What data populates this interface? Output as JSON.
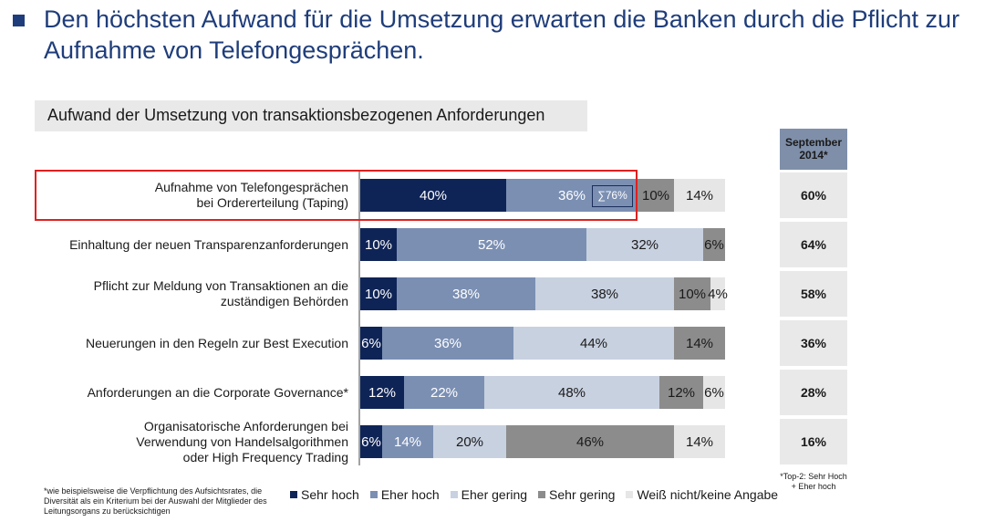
{
  "title": "Den höchsten Aufwand für die Umsetzung erwarten die Banken durch die Pflicht zur Aufnahme von Telefongesprächen.",
  "colors": {
    "sehr_hoch": "#0f2456",
    "eher_hoch": "#7b8fb3",
    "eher_gering": "#c8d1e0",
    "sehr_gering": "#8c8c8c",
    "weiss_nicht": "#e6e6e6",
    "highlight": "#e02020",
    "header_bg": "#7f8fa9",
    "cell_bg": "#e9e9e9"
  },
  "chart_data": {
    "type": "bar",
    "orientation": "horizontal",
    "stacked": true,
    "title": "Aufwand der Umsetzung von transaktionsbezogenen Anforderungen",
    "xlim": [
      0,
      100
    ],
    "categories": [
      "Aufnahme von Telefongesprächen\nbei Ordererteilung (Taping)",
      "Einhaltung der neuen Transparenzanforderungen",
      "Pflicht zur Meldung von Transaktionen an die\nzuständigen Behörden",
      "Neuerungen in den Regeln zur Best Execution",
      "Anforderungen an die Corporate Governance*",
      "Organisatorische Anforderungen bei\nVerwendung von Handelsalgorithmen\noder High Frequency Trading"
    ],
    "series": [
      {
        "name": "Sehr hoch",
        "values": [
          40,
          10,
          10,
          6,
          12,
          6
        ]
      },
      {
        "name": "Eher hoch",
        "values": [
          36,
          52,
          38,
          36,
          22,
          14
        ]
      },
      {
        "name": "Eher gering",
        "values": [
          0,
          32,
          38,
          44,
          48,
          20
        ]
      },
      {
        "name": "Sehr gering",
        "values": [
          10,
          6,
          10,
          14,
          12,
          46
        ]
      },
      {
        "name": "Weiß nicht/keine Angabe",
        "values": [
          14,
          0,
          4,
          0,
          6,
          14
        ]
      }
    ],
    "value_labels": [
      [
        "40%",
        "36%",
        "",
        "10%",
        "14%"
      ],
      [
        "10%",
        "52%",
        "32%",
        "6%",
        ""
      ],
      [
        "10%",
        "38%",
        "38%",
        "10%",
        "4%"
      ],
      [
        "6%",
        "36%",
        "44%",
        "14%",
        ""
      ],
      [
        "12%",
        "22%",
        "48%",
        "12%",
        "6%"
      ],
      [
        "6%",
        "14%",
        "20%",
        "46%",
        "14%"
      ]
    ],
    "sum_annotation": "∑76%",
    "side_column": {
      "header": "September 2014*",
      "values": [
        "60%",
        "64%",
        "58%",
        "36%",
        "28%",
        "16%"
      ],
      "note": "*Top-2: Sehr Hoch + Eher hoch"
    },
    "legend": [
      "Sehr hoch",
      "Eher hoch",
      "Eher gering",
      "Sehr gering",
      "Weiß nicht/keine Angabe"
    ],
    "legend_position": "bottom"
  },
  "footnote": "*wie beispielsweise die Verpflichtung des Aufsichtsrates, die Diversität als ein Kriterium bei der Auswahl der Mitglieder des Leitungsorgans zu berücksichtigen"
}
